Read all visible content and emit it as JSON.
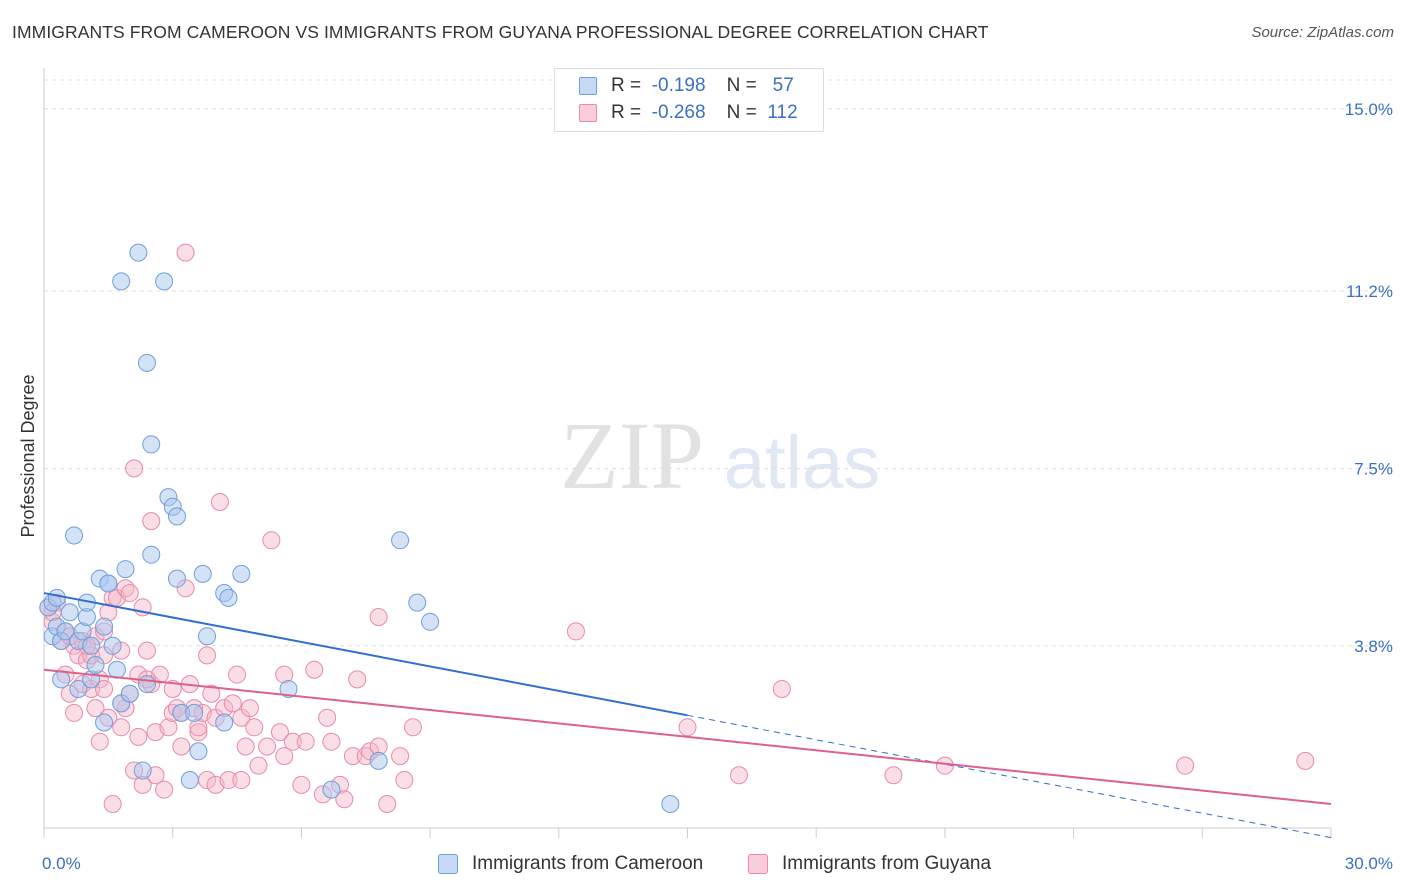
{
  "title": "IMMIGRANTS FROM CAMEROON VS IMMIGRANTS FROM GUYANA PROFESSIONAL DEGREE CORRELATION CHART",
  "source": "Source: ZipAtlas.com",
  "watermark": {
    "zip": "ZIP",
    "atlas": "atlas"
  },
  "legend": {
    "r_label": "R =",
    "n_label": "N =",
    "rows": [
      {
        "r": "-0.198",
        "n": "57",
        "color": "#a9c6ee"
      },
      {
        "r": "-0.268",
        "n": "112",
        "color": "#f5b5c8"
      }
    ]
  },
  "colors": {
    "cameroon_fill": "#a9c6ee",
    "cameroon_stroke": "#6f9fdc",
    "cameroon_line": "#2e6fd0",
    "guyana_fill": "#f5b5c8",
    "guyana_stroke": "#e98aa8",
    "guyana_line": "#e0608c",
    "tick_label": "#3a6fc4"
  },
  "chart_data": {
    "type": "scatter",
    "xlabel": "",
    "ylabel": "Professional Degree",
    "xlim": [
      0,
      30
    ],
    "ylim": [
      0,
      15.6
    ],
    "x_tick_labels": [
      {
        "value": 0,
        "label": "0.0%"
      },
      {
        "value": 30,
        "label": "30.0%"
      }
    ],
    "y_tick_labels": [
      {
        "value": 3.8,
        "label": "3.8%"
      },
      {
        "value": 7.5,
        "label": "7.5%"
      },
      {
        "value": 11.2,
        "label": "11.2%"
      },
      {
        "value": 15.0,
        "label": "15.0%"
      }
    ],
    "grid": true,
    "legend_position": "top-center",
    "series": [
      {
        "name": "Immigrants from Cameroon",
        "regression": {
          "x": [
            0,
            15
          ],
          "y": [
            4.9,
            2.35
          ],
          "dashed_extension_to_x": 30
        },
        "points": [
          [
            0.1,
            4.6
          ],
          [
            0.2,
            4.7
          ],
          [
            0.2,
            4.0
          ],
          [
            0.3,
            4.2
          ],
          [
            0.4,
            3.1
          ],
          [
            0.4,
            3.9
          ],
          [
            0.5,
            4.1
          ],
          [
            0.6,
            4.5
          ],
          [
            0.7,
            6.1
          ],
          [
            0.8,
            3.9
          ],
          [
            0.8,
            2.9
          ],
          [
            0.9,
            4.1
          ],
          [
            1.0,
            4.4
          ],
          [
            1.0,
            4.7
          ],
          [
            1.1,
            3.8
          ],
          [
            1.1,
            3.1
          ],
          [
            1.2,
            3.4
          ],
          [
            1.3,
            5.2
          ],
          [
            1.4,
            4.2
          ],
          [
            1.4,
            2.2
          ],
          [
            1.5,
            5.1
          ],
          [
            1.5,
            5.1
          ],
          [
            1.6,
            3.8
          ],
          [
            1.7,
            3.3
          ],
          [
            1.8,
            2.6
          ],
          [
            1.8,
            11.4
          ],
          [
            1.9,
            5.4
          ],
          [
            2.0,
            2.8
          ],
          [
            2.2,
            12.0
          ],
          [
            2.3,
            1.2
          ],
          [
            2.4,
            3.0
          ],
          [
            2.4,
            9.7
          ],
          [
            2.5,
            5.7
          ],
          [
            2.5,
            8.0
          ],
          [
            2.8,
            11.4
          ],
          [
            2.9,
            6.9
          ],
          [
            3.0,
            6.7
          ],
          [
            3.1,
            6.5
          ],
          [
            3.1,
            5.2
          ],
          [
            3.2,
            2.4
          ],
          [
            3.4,
            1.0
          ],
          [
            3.5,
            2.4
          ],
          [
            3.6,
            1.6
          ],
          [
            3.7,
            5.3
          ],
          [
            3.8,
            4.0
          ],
          [
            4.2,
            2.2
          ],
          [
            4.2,
            4.9
          ],
          [
            4.3,
            4.8
          ],
          [
            4.6,
            5.3
          ],
          [
            5.7,
            2.9
          ],
          [
            6.7,
            0.8
          ],
          [
            7.8,
            1.4
          ],
          [
            8.3,
            6.0
          ],
          [
            8.7,
            4.7
          ],
          [
            9.0,
            4.3
          ],
          [
            14.6,
            0.5
          ],
          [
            0.3,
            4.8
          ]
        ]
      },
      {
        "name": "Immigrants from Guyana",
        "regression": {
          "x": [
            0,
            30
          ],
          "y": [
            3.3,
            0.5
          ]
        },
        "points": [
          [
            0.1,
            4.6
          ],
          [
            0.2,
            4.3
          ],
          [
            0.3,
            4.7
          ],
          [
            0.4,
            3.9
          ],
          [
            0.5,
            4.1
          ],
          [
            0.5,
            3.2
          ],
          [
            0.6,
            2.8
          ],
          [
            0.7,
            3.8
          ],
          [
            0.7,
            2.4
          ],
          [
            0.8,
            3.6
          ],
          [
            0.9,
            3.9
          ],
          [
            0.9,
            3.0
          ],
          [
            1.0,
            3.5
          ],
          [
            1.1,
            3.6
          ],
          [
            1.1,
            2.9
          ],
          [
            1.2,
            4.0
          ],
          [
            1.2,
            2.5
          ],
          [
            1.3,
            1.8
          ],
          [
            1.3,
            3.1
          ],
          [
            1.4,
            4.1
          ],
          [
            1.4,
            2.9
          ],
          [
            1.5,
            4.5
          ],
          [
            1.5,
            2.3
          ],
          [
            1.6,
            4.8
          ],
          [
            1.6,
            0.5
          ],
          [
            1.7,
            4.8
          ],
          [
            1.8,
            3.7
          ],
          [
            1.8,
            2.1
          ],
          [
            1.9,
            5.0
          ],
          [
            1.9,
            2.5
          ],
          [
            2.0,
            4.9
          ],
          [
            2.0,
            2.8
          ],
          [
            2.1,
            1.2
          ],
          [
            2.1,
            7.5
          ],
          [
            2.2,
            3.2
          ],
          [
            2.2,
            1.9
          ],
          [
            2.3,
            4.6
          ],
          [
            2.3,
            0.9
          ],
          [
            2.4,
            3.7
          ],
          [
            2.5,
            3.0
          ],
          [
            2.5,
            6.4
          ],
          [
            2.6,
            2.0
          ],
          [
            2.6,
            1.1
          ],
          [
            2.7,
            3.2
          ],
          [
            2.8,
            0.8
          ],
          [
            2.9,
            2.1
          ],
          [
            3.0,
            2.9
          ],
          [
            3.0,
            2.4
          ],
          [
            3.1,
            2.5
          ],
          [
            3.2,
            1.7
          ],
          [
            3.2,
            2.4
          ],
          [
            3.3,
            5.0
          ],
          [
            3.3,
            12.0
          ],
          [
            3.4,
            3.0
          ],
          [
            3.5,
            2.5
          ],
          [
            3.6,
            2.0
          ],
          [
            3.6,
            2.1
          ],
          [
            3.7,
            2.4
          ],
          [
            3.8,
            3.6
          ],
          [
            3.8,
            1.0
          ],
          [
            3.9,
            2.8
          ],
          [
            4.0,
            2.3
          ],
          [
            4.0,
            0.9
          ],
          [
            4.1,
            6.8
          ],
          [
            4.2,
            2.5
          ],
          [
            4.3,
            1.0
          ],
          [
            4.4,
            2.6
          ],
          [
            4.5,
            3.2
          ],
          [
            4.6,
            2.3
          ],
          [
            4.6,
            1.0
          ],
          [
            4.7,
            1.7
          ],
          [
            4.8,
            2.5
          ],
          [
            4.9,
            2.1
          ],
          [
            5.0,
            1.3
          ],
          [
            5.2,
            1.7
          ],
          [
            5.3,
            6.0
          ],
          [
            5.5,
            2.0
          ],
          [
            5.6,
            3.2
          ],
          [
            5.6,
            1.5
          ],
          [
            5.8,
            1.8
          ],
          [
            6.0,
            0.9
          ],
          [
            6.1,
            1.8
          ],
          [
            6.3,
            3.3
          ],
          [
            6.5,
            0.7
          ],
          [
            6.6,
            2.3
          ],
          [
            6.7,
            1.8
          ],
          [
            6.9,
            0.9
          ],
          [
            7.0,
            0.6
          ],
          [
            7.2,
            1.5
          ],
          [
            7.3,
            3.1
          ],
          [
            7.5,
            1.5
          ],
          [
            7.6,
            1.6
          ],
          [
            7.8,
            1.7
          ],
          [
            7.8,
            4.4
          ],
          [
            8.0,
            0.5
          ],
          [
            8.3,
            1.5
          ],
          [
            8.4,
            1.0
          ],
          [
            8.6,
            2.1
          ],
          [
            12.4,
            4.1
          ],
          [
            15.0,
            2.1
          ],
          [
            16.2,
            1.1
          ],
          [
            17.2,
            2.9
          ],
          [
            19.8,
            1.1
          ],
          [
            21.0,
            1.3
          ],
          [
            26.6,
            1.3
          ],
          [
            29.4,
            1.4
          ],
          [
            0.2,
            4.5
          ],
          [
            0.6,
            4.0
          ],
          [
            1.0,
            3.8
          ],
          [
            1.4,
            3.6
          ],
          [
            1.8,
            2.6
          ],
          [
            2.4,
            3.1
          ]
        ]
      }
    ]
  }
}
